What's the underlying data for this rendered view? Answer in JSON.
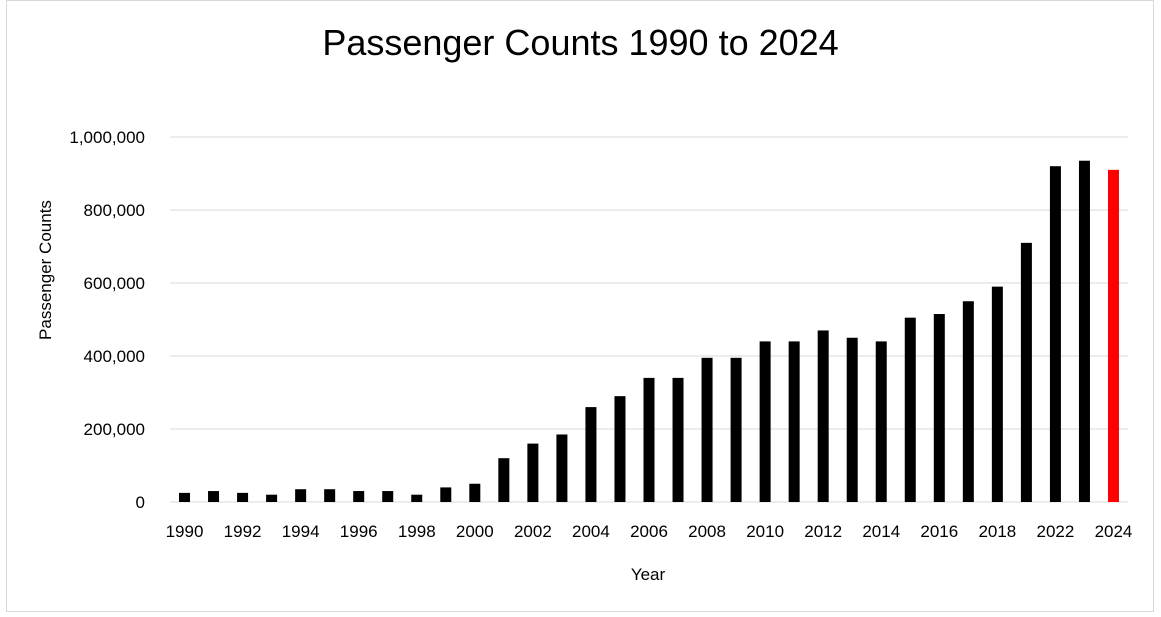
{
  "chart_data": {
    "type": "bar",
    "title": "Passenger Counts 1990 to 2024",
    "xlabel": "Year",
    "ylabel": "Passenger Counts",
    "ylim": [
      0,
      1000000
    ],
    "yticks": [
      "0",
      "200,000",
      "400,000",
      "600,000",
      "800,000",
      "1,000,000"
    ],
    "ytick_values": [
      0,
      200000,
      400000,
      600000,
      800000,
      1000000
    ],
    "grid": true,
    "categories": [
      "1990",
      "1991",
      "1992",
      "1993",
      "1994",
      "1995",
      "1996",
      "1997",
      "1998",
      "1999",
      "2000",
      "2001",
      "2002",
      "2003",
      "2004",
      "2005",
      "2006",
      "2007",
      "2008",
      "2009",
      "2010",
      "2011",
      "2012",
      "2013",
      "2014",
      "2015",
      "2016",
      "2017",
      "2018",
      "2019",
      "2022",
      "2023",
      "2024"
    ],
    "xtick_labels": [
      "1990",
      "",
      "1992",
      "",
      "1994",
      "",
      "1996",
      "",
      "1998",
      "",
      "2000",
      "",
      "2002",
      "",
      "2004",
      "",
      "2006",
      "",
      "2008",
      "",
      "2010",
      "",
      "2012",
      "",
      "2014",
      "",
      "2016",
      "",
      "2018",
      "",
      "2022",
      "",
      "2024"
    ],
    "values": [
      25000,
      30000,
      25000,
      20000,
      35000,
      35000,
      30000,
      30000,
      20000,
      40000,
      50000,
      120000,
      160000,
      185000,
      260000,
      290000,
      340000,
      340000,
      395000,
      395000,
      440000,
      440000,
      470000,
      450000,
      440000,
      505000,
      515000,
      550000,
      590000,
      710000,
      920000,
      935000,
      910000
    ],
    "bar_color": "#000000",
    "highlight_color": "#ff0000",
    "highlight_index": 32,
    "gridline_color": "#d9d9d9"
  }
}
